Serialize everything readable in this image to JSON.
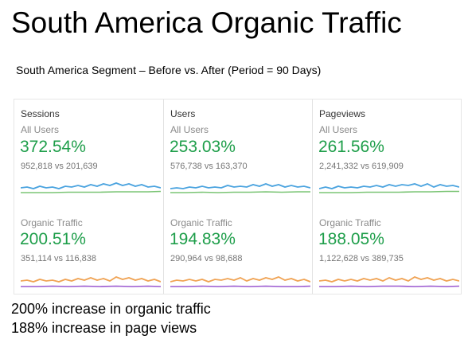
{
  "title": "South America Organic Traffic",
  "subtitle": "South America Segment – Before vs.  After (Period = 90 Days)",
  "colors": {
    "positive_green": "#1e9e4a",
    "all_users_current_line": "#4aa3df",
    "all_users_previous_line": "#7cc576",
    "organic_current_line": "#f0a354",
    "organic_previous_line": "#9b59d0"
  },
  "metrics": [
    {
      "header": "Sessions",
      "segments": [
        {
          "label": "All Users",
          "change": "372.54%",
          "comparison": "952,818 vs 201,639"
        },
        {
          "label": "Organic Traffic",
          "change": "200.51%",
          "comparison": "351,114 vs 116,838"
        }
      ]
    },
    {
      "header": "Users",
      "segments": [
        {
          "label": "All Users",
          "change": "253.03%",
          "comparison": "576,738 vs 163,370"
        },
        {
          "label": "Organic Traffic",
          "change": "194.83%",
          "comparison": "290,964 vs 98,688"
        }
      ]
    },
    {
      "header": "Pageviews",
      "segments": [
        {
          "label": "All Users",
          "change": "261.56%",
          "comparison": "2,241,332 vs 619,909"
        },
        {
          "label": "Organic Traffic",
          "change": "188.05%",
          "comparison": "1,122,628 vs 389,735"
        }
      ]
    }
  ],
  "footer": {
    "line1": "200% increase in organic traffic",
    "line2": "188% increase in page views"
  }
}
